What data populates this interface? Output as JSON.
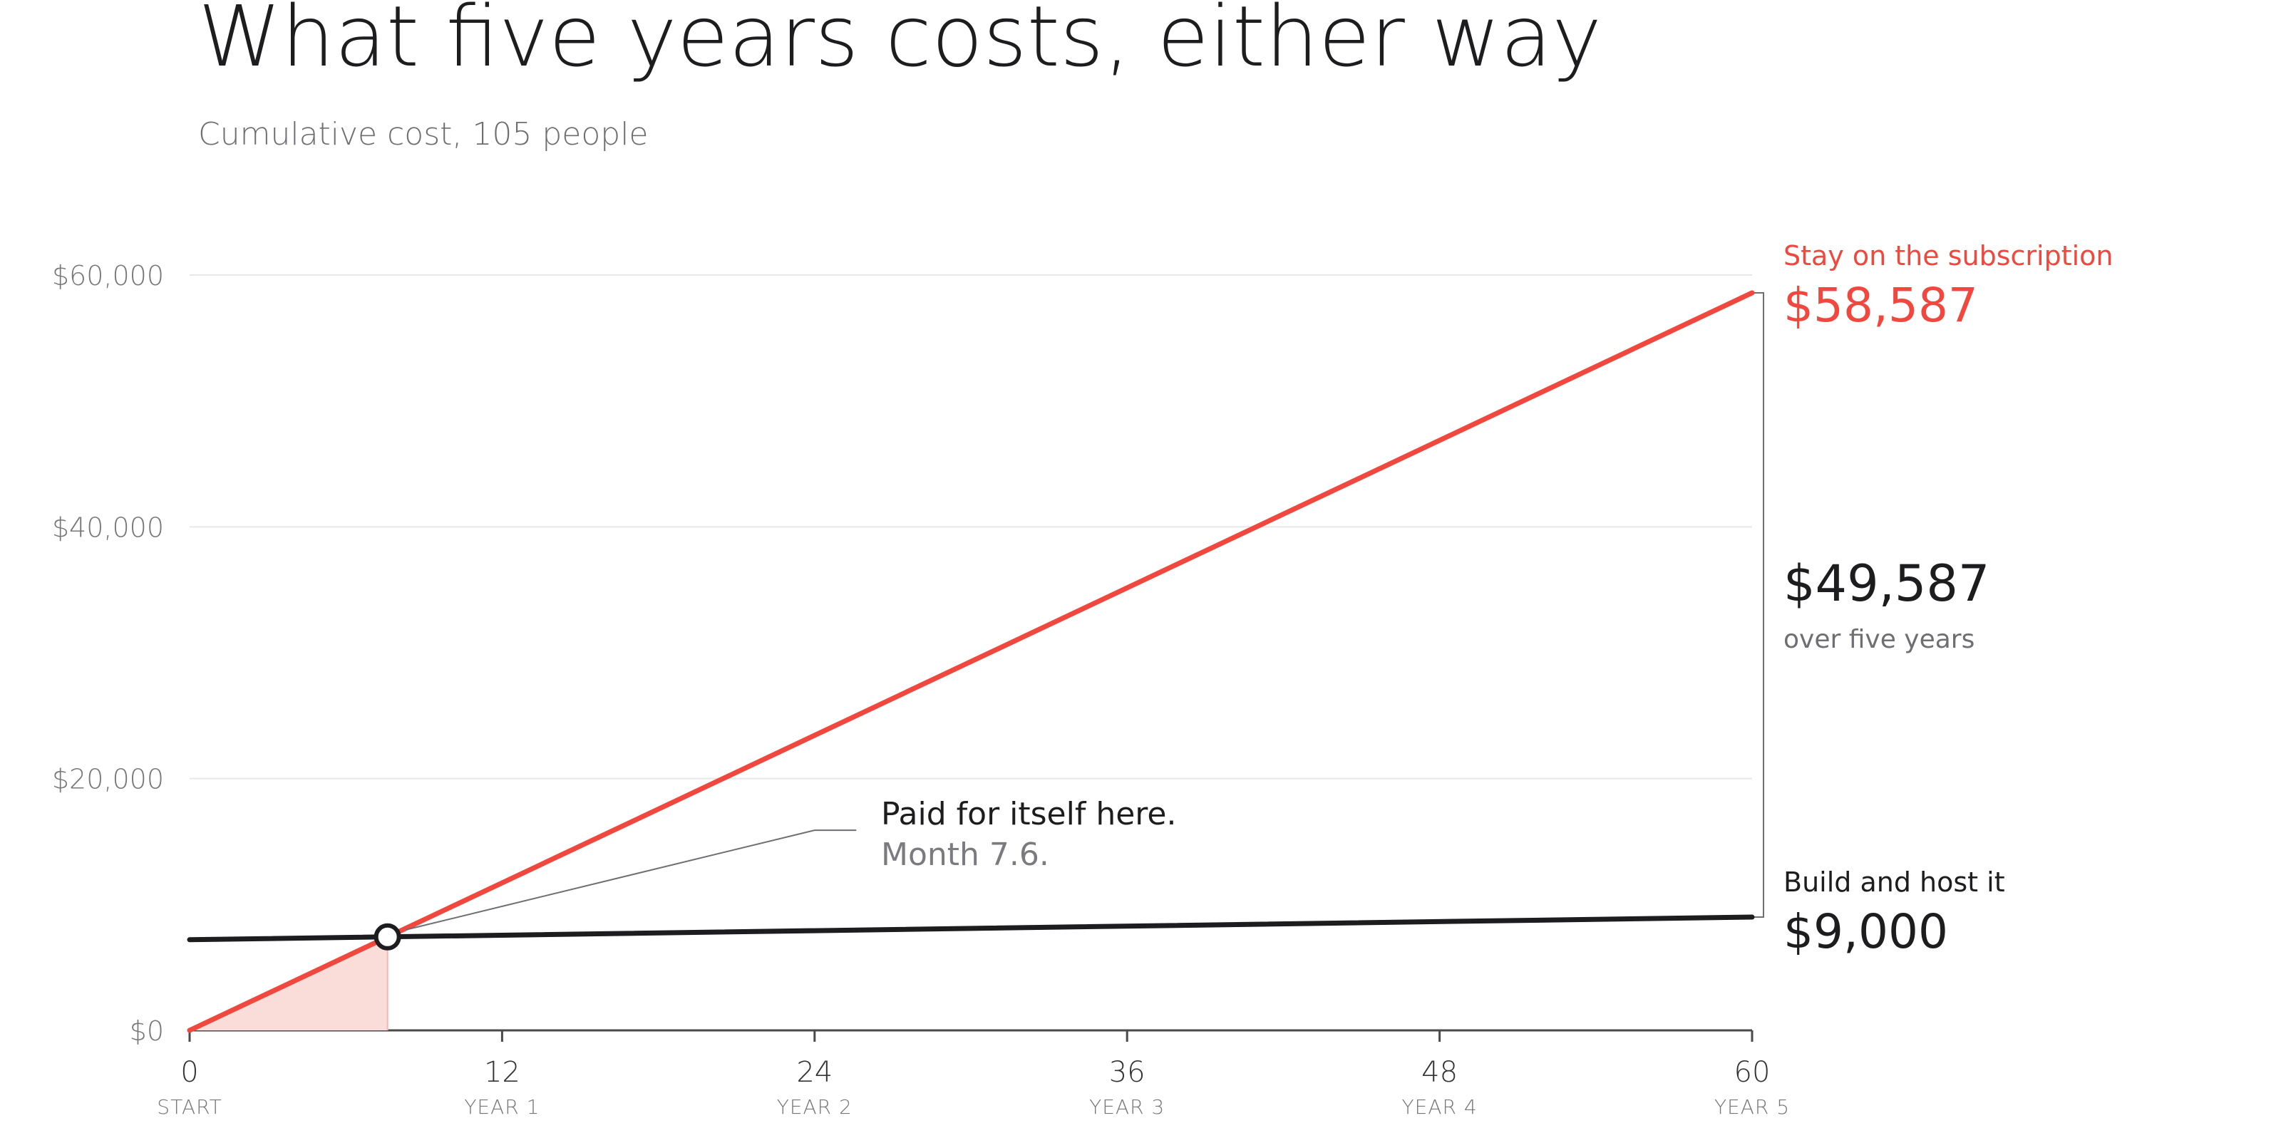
{
  "title": "What five years costs, either way",
  "subtitle": "Cumulative cost, 105 people",
  "colors": {
    "subscription": "#f0483e",
    "build": "#1d1d1f",
    "grid": "#e8e8e8",
    "axis": "#555555",
    "muted": "#777777",
    "shade": "#fadcd9"
  },
  "series_labels": {
    "subscription_name": "Stay on the subscription",
    "subscription_total": "$58,587",
    "build_name": "Build and host it",
    "build_total": "$9,000"
  },
  "difference": {
    "value": "$49,587",
    "caption": "over five years"
  },
  "annotation": {
    "line1": "Paid for itself here.",
    "line2": "Month 7.6."
  },
  "chart_data": {
    "type": "line",
    "title": "What five years costs, either way",
    "subtitle": "Cumulative cost, 105 people",
    "xlabel": "",
    "ylabel": "",
    "xlim": [
      0,
      60
    ],
    "ylim": [
      0,
      60000
    ],
    "x_ticks": [
      {
        "value": 0,
        "label": "0",
        "sublabel": "START"
      },
      {
        "value": 12,
        "label": "12",
        "sublabel": "YEAR 1"
      },
      {
        "value": 24,
        "label": "24",
        "sublabel": "YEAR 2"
      },
      {
        "value": 36,
        "label": "36",
        "sublabel": "YEAR 3"
      },
      {
        "value": 48,
        "label": "48",
        "sublabel": "YEAR 4"
      },
      {
        "value": 60,
        "label": "60",
        "sublabel": "YEAR 5"
      }
    ],
    "y_ticks": [
      {
        "value": 0,
        "label": "$0"
      },
      {
        "value": 20000,
        "label": "$20,000"
      },
      {
        "value": 40000,
        "label": "$40,000"
      },
      {
        "value": 60000,
        "label": "$60,000"
      }
    ],
    "grid": true,
    "series": [
      {
        "name": "Stay on the subscription",
        "x": [
          0,
          60
        ],
        "y": [
          0,
          58587
        ]
      },
      {
        "name": "Build and host it",
        "x": [
          0,
          60
        ],
        "y": [
          7200,
          9000
        ]
      }
    ],
    "breakeven": {
      "x": 7.6,
      "y": 7428
    }
  }
}
